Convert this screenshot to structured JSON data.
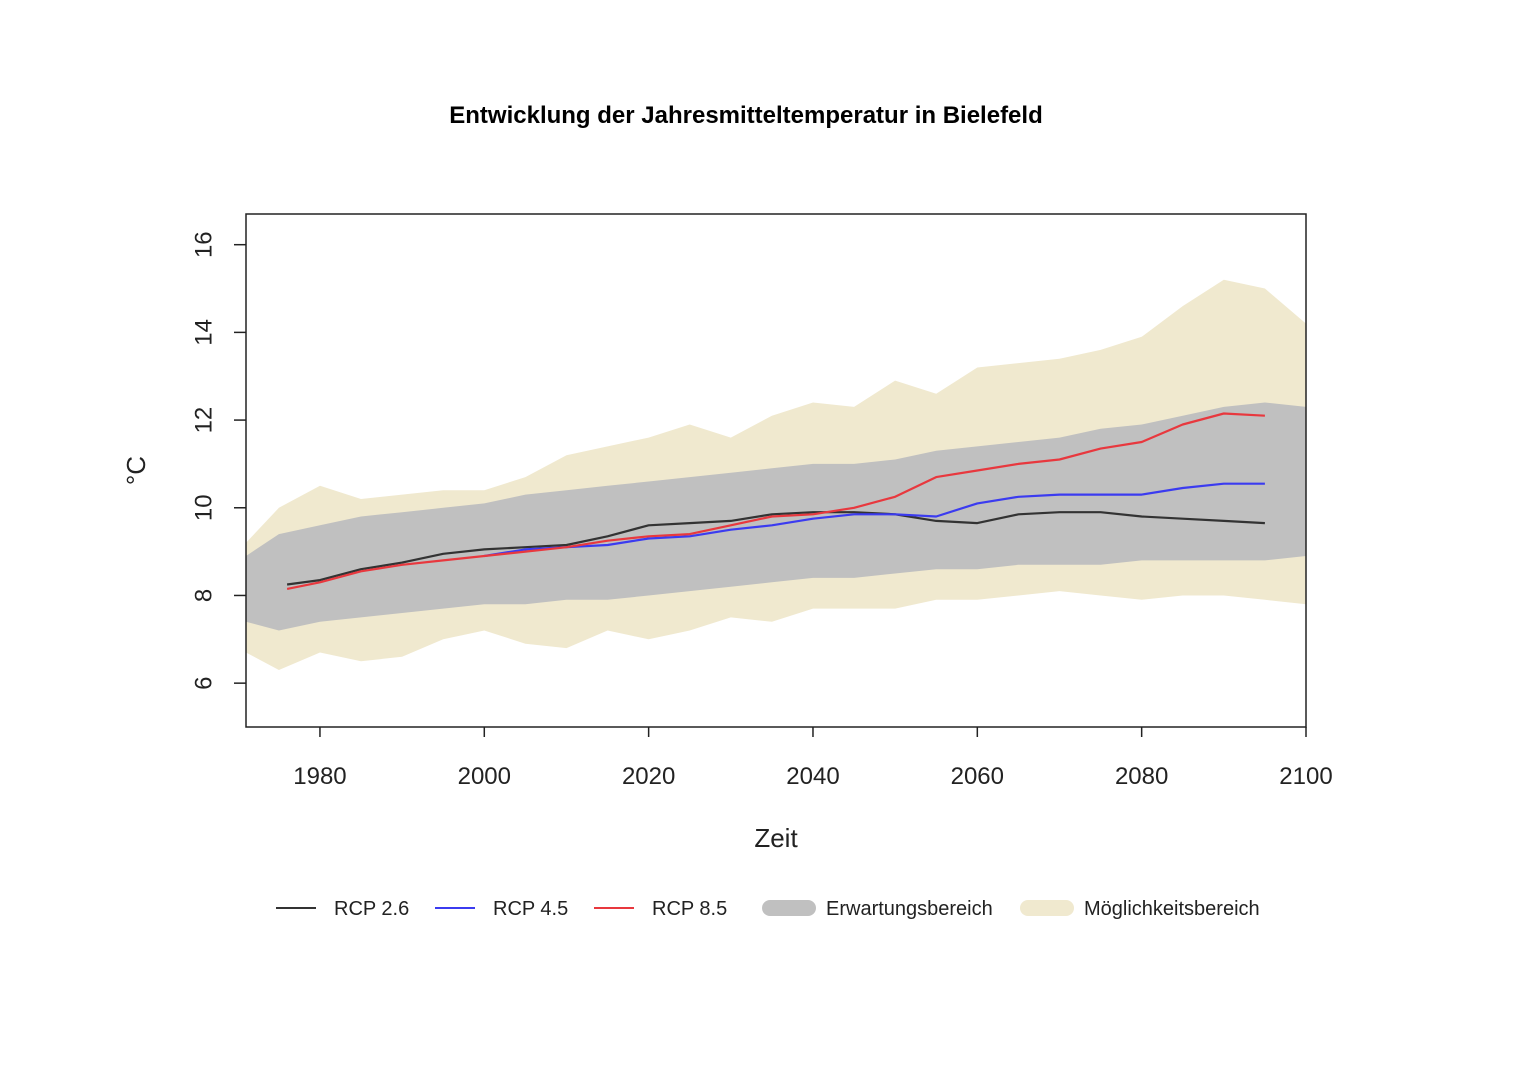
{
  "chart_data": {
    "type": "line",
    "title": "Entwicklung der Jahresmitteltemperatur in Bielefeld",
    "xlabel": "Zeit",
    "ylabel": "°C",
    "xlim": [
      1971,
      2100
    ],
    "ylim": [
      5,
      16.7
    ],
    "xticks": [
      "1980",
      "2000",
      "2020",
      "2040",
      "2060",
      "2080",
      "2100"
    ],
    "yticks": [
      "6",
      "8",
      "10",
      "12",
      "14",
      "16"
    ],
    "colors": {
      "rcp26": "#333333",
      "rcp45": "#3b3bf0",
      "rcp85": "#e8383e",
      "erwartung": "#c0c0c0",
      "moeglichkeit": "#f0e9cf"
    },
    "legend": {
      "position": "bottom",
      "items": [
        {
          "label": "RCP 2.6",
          "kind": "line",
          "color": "#333333"
        },
        {
          "label": "RCP 4.5",
          "kind": "line",
          "color": "#3b3bf0"
        },
        {
          "label": "RCP 8.5",
          "kind": "line",
          "color": "#e8383e"
        },
        {
          "label": "Erwartungsbereich",
          "kind": "band",
          "color": "#c0c0c0"
        },
        {
          "label": "Möglichkeitsbereich",
          "kind": "band",
          "color": "#f0e9cf"
        }
      ]
    },
    "bands": [
      {
        "name": "Möglichkeitsbereich",
        "x": [
          1971,
          1975,
          1980,
          1985,
          1990,
          1995,
          2000,
          2005,
          2010,
          2015,
          2020,
          2025,
          2030,
          2035,
          2040,
          2045,
          2050,
          2055,
          2060,
          2065,
          2070,
          2075,
          2080,
          2085,
          2090,
          2095,
          2100
        ],
        "upper": [
          9.2,
          10.0,
          10.5,
          10.2,
          10.3,
          10.4,
          10.4,
          10.7,
          11.2,
          11.4,
          11.6,
          11.9,
          11.6,
          12.1,
          12.4,
          12.3,
          12.9,
          12.6,
          13.2,
          13.3,
          13.4,
          13.6,
          13.9,
          14.6,
          15.2,
          15.0,
          14.2
        ],
        "lower": [
          6.7,
          6.3,
          6.7,
          6.5,
          6.6,
          7.0,
          7.2,
          6.9,
          6.8,
          7.2,
          7.0,
          7.2,
          7.5,
          7.4,
          7.7,
          7.7,
          7.7,
          7.9,
          7.9,
          8.0,
          8.1,
          8.0,
          7.9,
          8.0,
          8.0,
          7.9,
          7.8
        ]
      },
      {
        "name": "Erwartungsbereich",
        "x": [
          1971,
          1975,
          1980,
          1985,
          1990,
          1995,
          2000,
          2005,
          2010,
          2015,
          2020,
          2025,
          2030,
          2035,
          2040,
          2045,
          2050,
          2055,
          2060,
          2065,
          2070,
          2075,
          2080,
          2085,
          2090,
          2095,
          2100
        ],
        "upper": [
          8.9,
          9.4,
          9.6,
          9.8,
          9.9,
          10.0,
          10.1,
          10.3,
          10.4,
          10.5,
          10.6,
          10.7,
          10.8,
          10.9,
          11.0,
          11.0,
          11.1,
          11.3,
          11.4,
          11.5,
          11.6,
          11.8,
          11.9,
          12.1,
          12.3,
          12.4,
          12.3
        ],
        "lower": [
          7.4,
          7.2,
          7.4,
          7.5,
          7.6,
          7.7,
          7.8,
          7.8,
          7.9,
          7.9,
          8.0,
          8.1,
          8.2,
          8.3,
          8.4,
          8.4,
          8.5,
          8.6,
          8.6,
          8.7,
          8.7,
          8.7,
          8.8,
          8.8,
          8.8,
          8.8,
          8.9
        ]
      }
    ],
    "series": [
      {
        "name": "RCP 2.6",
        "x": [
          1976,
          1980,
          1985,
          1990,
          1995,
          2000,
          2005,
          2010,
          2015,
          2020,
          2025,
          2030,
          2035,
          2040,
          2045,
          2050,
          2055,
          2060,
          2065,
          2070,
          2075,
          2080,
          2085,
          2090,
          2095
        ],
        "y": [
          8.25,
          8.35,
          8.6,
          8.75,
          8.95,
          9.05,
          9.1,
          9.15,
          9.35,
          9.6,
          9.65,
          9.7,
          9.85,
          9.9,
          9.9,
          9.85,
          9.7,
          9.65,
          9.85,
          9.9,
          9.9,
          9.8,
          9.75,
          9.7,
          9.65
        ]
      },
      {
        "name": "RCP 4.5",
        "x": [
          2000,
          2005,
          2010,
          2015,
          2020,
          2025,
          2030,
          2035,
          2040,
          2045,
          2050,
          2055,
          2060,
          2065,
          2070,
          2075,
          2080,
          2085,
          2090,
          2095
        ],
        "y": [
          8.9,
          9.05,
          9.1,
          9.15,
          9.3,
          9.35,
          9.5,
          9.6,
          9.75,
          9.85,
          9.85,
          9.8,
          10.1,
          10.25,
          10.3,
          10.3,
          10.3,
          10.45,
          10.55,
          10.55
        ]
      },
      {
        "name": "RCP 8.5",
        "x": [
          1976,
          1980,
          1985,
          1990,
          1995,
          2000,
          2005,
          2010,
          2015,
          2020,
          2025,
          2030,
          2035,
          2040,
          2045,
          2050,
          2055,
          2060,
          2065,
          2070,
          2075,
          2080,
          2085,
          2090,
          2095
        ],
        "y": [
          8.15,
          8.3,
          8.55,
          8.7,
          8.8,
          8.9,
          9.0,
          9.1,
          9.25,
          9.35,
          9.4,
          9.6,
          9.8,
          9.85,
          10.0,
          10.25,
          10.7,
          10.85,
          11.0,
          11.1,
          11.35,
          11.5,
          11.9,
          12.15,
          12.1
        ]
      }
    ]
  }
}
